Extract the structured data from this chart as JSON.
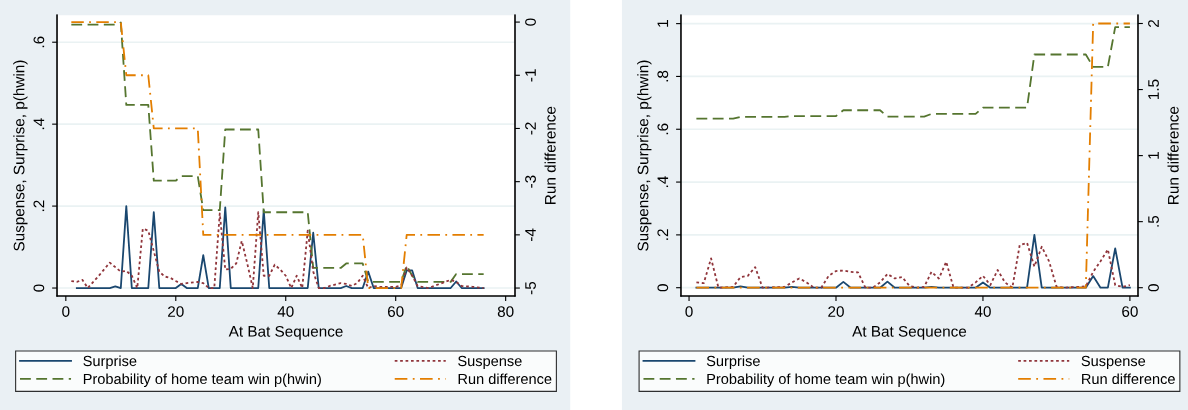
{
  "chart_data": [
    {
      "type": "line",
      "xlabel": "At Bat Sequence",
      "ylabel": "Suspense, Surprise, p(hwin)",
      "y2label": "Run difference",
      "xlim": [
        -1.6,
        81.7
      ],
      "xticks": [
        0,
        20,
        40,
        60,
        80
      ],
      "ylim": [
        -0.0195,
        0.666
      ],
      "yticks": [
        0,
        {
          "value": 0.2,
          "label": ".2"
        },
        {
          "value": 0.4,
          "label": ".4"
        },
        {
          "value": 0.6,
          "label": ".6"
        }
      ],
      "y2lim": [
        -5.15,
        0.13
      ],
      "y2ticks": [
        0,
        {
          "value": -1,
          "label": "-1"
        },
        {
          "value": -2,
          "label": "-2"
        },
        {
          "value": -3,
          "label": "-3"
        },
        {
          "value": -4,
          "label": "-4"
        },
        {
          "value": -5,
          "label": "-5"
        }
      ],
      "grid": "y",
      "legend": "bottom",
      "marker": "none",
      "series": [
        {
          "name": "Surprise",
          "color": "#1a476f",
          "line_style": "solid",
          "x": [
            2,
            8,
            9,
            10,
            11,
            12,
            15,
            16,
            17,
            20,
            21,
            22,
            24,
            25,
            26,
            28,
            29,
            30,
            35,
            36,
            37,
            44,
            45,
            46,
            50,
            51,
            52,
            54,
            55,
            56,
            61,
            62,
            63,
            64,
            70,
            71,
            72,
            76
          ],
          "values": [
            0,
            0,
            0.004,
            0,
            0.2,
            0,
            0,
            0.185,
            0,
            0,
            0.01,
            0,
            0,
            0.08,
            0,
            0,
            0.197,
            0,
            0,
            0.19,
            0,
            0,
            0.135,
            0,
            0,
            0.005,
            0,
            0,
            0.04,
            0,
            0,
            0.043,
            0.043,
            0,
            0,
            0.016,
            0,
            0
          ]
        },
        {
          "name": "Probability of home team win p(hwin)",
          "color": "#55752f",
          "line_style": "dashed",
          "x": [
            1,
            9,
            10,
            11,
            15,
            16,
            20,
            21,
            24,
            25,
            28,
            29,
            35,
            36,
            44,
            45,
            50,
            51,
            54,
            55,
            61,
            62,
            63,
            64,
            70,
            71,
            76
          ],
          "values": [
            0.643,
            0.643,
            0.648,
            0.447,
            0.447,
            0.262,
            0.262,
            0.273,
            0.273,
            0.19,
            0.19,
            0.387,
            0.387,
            0.185,
            0.185,
            0.049,
            0.049,
            0.06,
            0.06,
            0.015,
            0.015,
            0.055,
            0.03,
            0.015,
            0.015,
            0.034,
            0.034
          ]
        },
        {
          "name": "Suspense",
          "color": "#90353b",
          "line_style": "dotted",
          "x": [
            1,
            2,
            3,
            4,
            6,
            8,
            10,
            11,
            12,
            13,
            14,
            15,
            17,
            18,
            19,
            20,
            21,
            22,
            24,
            25,
            26,
            27,
            28,
            29,
            30,
            31,
            32,
            33,
            34,
            35,
            36,
            37,
            38,
            39,
            40,
            41,
            42,
            43,
            44,
            45,
            46,
            47,
            48,
            50,
            51,
            52,
            53,
            54,
            55,
            56,
            57,
            60,
            61,
            62,
            63,
            64,
            66,
            68,
            70,
            71,
            72,
            74,
            76
          ],
          "values": [
            0.017,
            0.015,
            0.02,
            0,
            0.03,
            0.062,
            0.04,
            0.042,
            0.03,
            0,
            0.145,
            0.14,
            0.04,
            0.028,
            0.025,
            0.017,
            0.01,
            0.012,
            0.015,
            0.012,
            0,
            0,
            0.182,
            0.045,
            0.047,
            0.06,
            0.115,
            0.06,
            0,
            0.185,
            0.03,
            0.03,
            0.057,
            0.045,
            0.03,
            0,
            0.03,
            0,
            0.14,
            0.04,
            0,
            0,
            0.005,
            0.012,
            0.01,
            0.005,
            0.012,
            0.03,
            0,
            0.005,
            0.003,
            0.003,
            0.006,
            0.05,
            0.03,
            0.005,
            0,
            0.01,
            0.02,
            0.015,
            0.005,
            0.003,
            0
          ]
        },
        {
          "name": "Run difference",
          "color": "#e37e00",
          "line_style": "dashdot",
          "axis": "y2",
          "x": [
            1,
            10,
            11,
            15,
            16,
            24,
            25,
            54,
            55,
            61,
            62,
            76
          ],
          "values": [
            0,
            0,
            -1,
            -1,
            -2,
            -2,
            -4,
            -4,
            -5,
            -5,
            -4,
            -4
          ]
        }
      ]
    },
    {
      "type": "line",
      "xlabel": "At Bat Sequence",
      "ylabel": "Suspense, Surprise, p(hwin)",
      "y2label": "Run difference",
      "xlim": [
        -1.1,
        61.1
      ],
      "xticks": [
        0,
        20,
        40,
        60
      ],
      "ylim": [
        -0.0315,
        1.032
      ],
      "yticks": [
        0,
        {
          "value": 0.2,
          "label": ".2"
        },
        {
          "value": 0.4,
          "label": ".4"
        },
        {
          "value": 0.6,
          "label": ".6"
        },
        {
          "value": 0.8,
          "label": ".8"
        },
        1
      ],
      "y2lim": [
        -0.063,
        2.063
      ],
      "y2ticks": [
        0,
        {
          "value": 0.5,
          "label": ".5"
        },
        1,
        {
          "value": 1.5,
          "label": "1.5"
        },
        2
      ],
      "grid": "y",
      "legend": "bottom",
      "marker": "none",
      "series": [
        {
          "name": "Surprise",
          "color": "#1a476f",
          "line_style": "solid",
          "x": [
            1,
            6,
            7,
            8,
            13,
            14,
            15,
            20,
            21,
            22,
            26,
            27,
            28,
            32,
            33,
            34,
            39,
            40,
            41,
            46,
            47,
            48,
            54,
            55,
            56,
            57,
            58,
            59,
            60
          ],
          "values": [
            0,
            0,
            0.005,
            0,
            0,
            0.003,
            0,
            0,
            0.022,
            0,
            0,
            0.023,
            0,
            0,
            0.003,
            0,
            0,
            0.02,
            0,
            0,
            0.2,
            0,
            0,
            0.044,
            0,
            0,
            0.149,
            0,
            0
          ]
        },
        {
          "name": "Probability of home team win p(hwin)",
          "color": "#55752f",
          "line_style": "dashed",
          "x": [
            1,
            6,
            7,
            13,
            14,
            20,
            21,
            26,
            27,
            32,
            33,
            39,
            40,
            46,
            47,
            54,
            55,
            57,
            58,
            60
          ],
          "values": [
            0.64,
            0.64,
            0.647,
            0.647,
            0.65,
            0.65,
            0.672,
            0.672,
            0.648,
            0.648,
            0.658,
            0.658,
            0.682,
            0.682,
            0.883,
            0.883,
            0.836,
            0.836,
            0.987,
            0.987
          ]
        },
        {
          "name": "Suspense",
          "color": "#90353b",
          "line_style": "dotted",
          "x": [
            1,
            2,
            3,
            4,
            6,
            7,
            8,
            9,
            10,
            13,
            14,
            15,
            16,
            17,
            18,
            19,
            20,
            21,
            22,
            23,
            24,
            25,
            26,
            27,
            28,
            29,
            30,
            31,
            32,
            33,
            34,
            35,
            36,
            38,
            39,
            40,
            41,
            42,
            43,
            44,
            45,
            46,
            47,
            48,
            49,
            50,
            51,
            54,
            55,
            56,
            57,
            58,
            59,
            60
          ],
          "values": [
            0.02,
            0.017,
            0.111,
            0,
            0.003,
            0.04,
            0.045,
            0.078,
            0,
            0.003,
            0.02,
            0.035,
            0.02,
            0,
            0,
            0.045,
            0.063,
            0.065,
            0.06,
            0.058,
            0,
            0,
            0.02,
            0.052,
            0.035,
            0.04,
            0.007,
            0,
            0.003,
            0.06,
            0.035,
            0.098,
            0,
            0,
            0.02,
            0.045,
            0.01,
            0.067,
            0.02,
            0,
            0.161,
            0.17,
            0.08,
            0.155,
            0.1,
            0.005,
            0,
            0.005,
            0.06,
            0.1,
            0.145,
            0.01,
            0.003,
            0.01
          ]
        },
        {
          "name": "Run difference",
          "color": "#e37e00",
          "line_style": "dashdot",
          "axis": "y2",
          "x": [
            1,
            54,
            55,
            60
          ],
          "values": [
            0,
            0,
            2,
            2
          ]
        }
      ]
    }
  ]
}
